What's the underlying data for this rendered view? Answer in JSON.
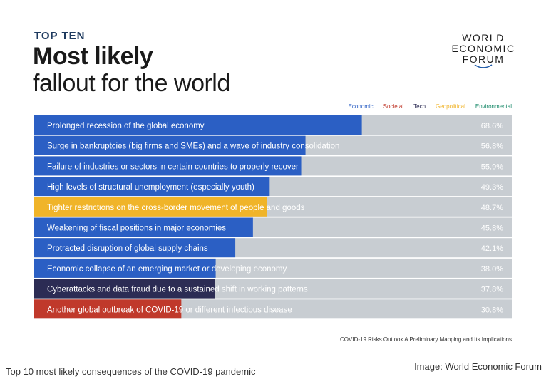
{
  "header": {
    "kicker": "TOP TEN",
    "title_line1": "Most likely",
    "title_line2": "fallout for the world"
  },
  "logo": {
    "line1": "WORLD",
    "line2": "ECONOMIC",
    "line3": "FORUM"
  },
  "legend": [
    {
      "label": "Economic",
      "color": "#2b5fc4"
    },
    {
      "label": "Societal",
      "color": "#c0392b"
    },
    {
      "label": "Tech",
      "color": "#2c2c54"
    },
    {
      "label": "Geopolitical",
      "color": "#f0b429"
    },
    {
      "label": "Environmental",
      "color": "#1a8a6a"
    }
  ],
  "chart_data": {
    "type": "bar",
    "orientation": "horizontal",
    "xlim": [
      0,
      100
    ],
    "categories": [
      "Prolonged recession of the global economy",
      "Surge in bankruptcies (big firms and SMEs) and a wave of industry consolidation",
      "Failure of industries or sectors in certain countries to properly recover",
      "High levels of structural unemployment (especially youth)",
      "Tighter restrictions on the cross-border movement of people and goods",
      "Weakening of fiscal positions in major economies",
      "Protracted disruption of global supply chains",
      "Economic collapse of an emerging market or developing economy",
      "Cyberattacks and data fraud due to a sustained shift in working patterns",
      "Another global outbreak of COVID-19 or different infectious disease"
    ],
    "values": [
      68.6,
      56.8,
      55.9,
      49.3,
      48.7,
      45.8,
      42.1,
      38.0,
      37.8,
      30.8
    ],
    "value_labels": [
      "68.6%",
      "56.8%",
      "55.9%",
      "49.3%",
      "48.7%",
      "45.8%",
      "42.1%",
      "38.0%",
      "37.8%",
      "30.8%"
    ],
    "bar_categories": [
      "Economic",
      "Economic",
      "Economic",
      "Economic",
      "Geopolitical",
      "Economic",
      "Economic",
      "Economic",
      "Tech",
      "Societal"
    ],
    "track_color": "#c8cdd2"
  },
  "source_note": "COVID-19 Risks Outlook A Preliminary Mapping and Its Implications",
  "caption": "Top 10 most likely consequences of the COVID-19 pandemic",
  "credit": "Image: World Economic Forum"
}
